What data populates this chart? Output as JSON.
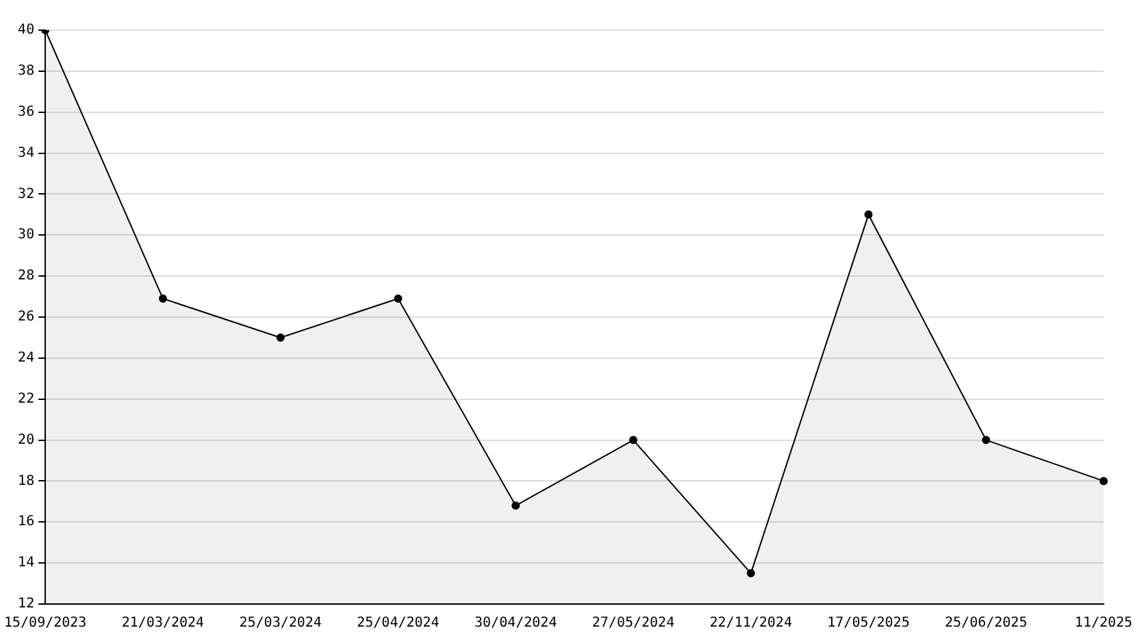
{
  "chart_data": {
    "type": "area",
    "categories": [
      "15/09/2023",
      "21/03/2024",
      "25/03/2024",
      "25/04/2024",
      "30/04/2024",
      "27/05/2024",
      "22/11/2024",
      "17/05/2025",
      "25/06/2025",
      "11/2025"
    ],
    "series": [
      {
        "color": "#000000",
        "values": [
          40,
          26.9,
          25,
          26.9,
          16.8,
          20,
          13.5,
          31,
          20,
          18
        ]
      }
    ],
    "ylim": [
      12,
      40
    ],
    "yticks": [
      12,
      14,
      16,
      18,
      20,
      22,
      24,
      26,
      28,
      30,
      32,
      34,
      36,
      38,
      40
    ],
    "grid": "y",
    "marker": "circle",
    "legend": false
  }
}
